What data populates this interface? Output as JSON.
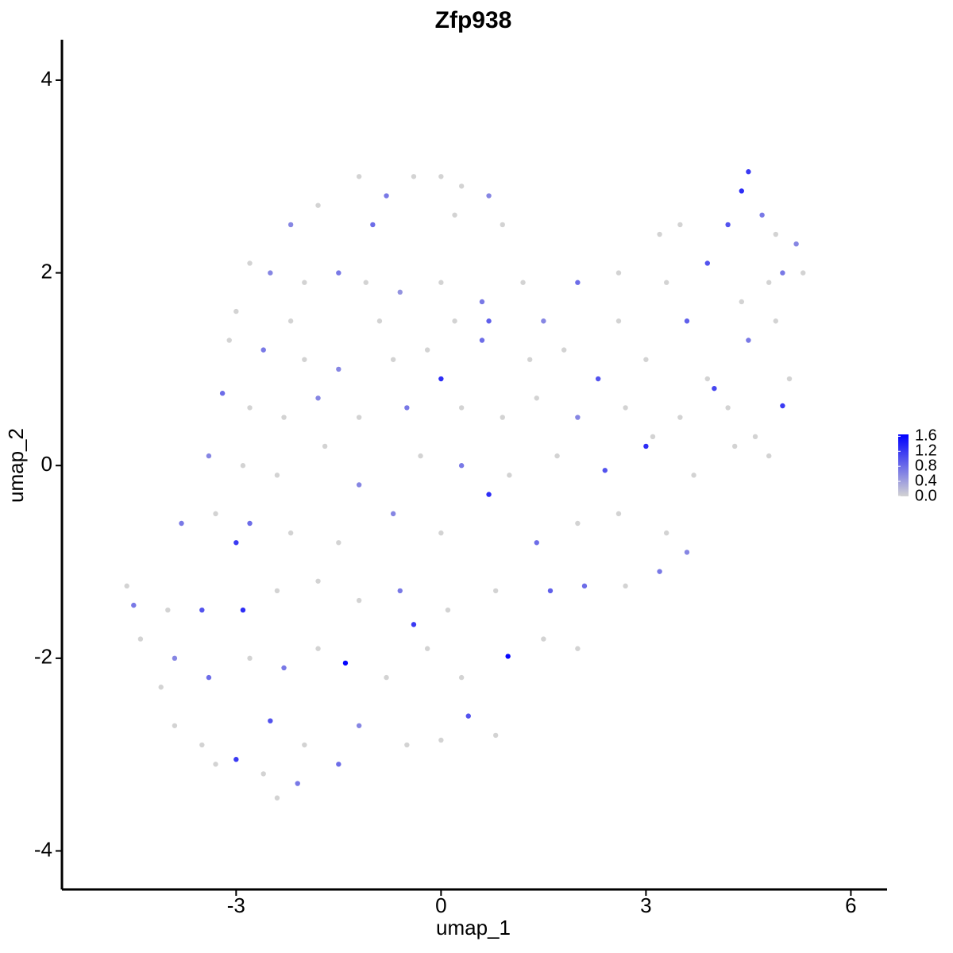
{
  "chart_data": {
    "type": "scatter",
    "title": "Zfp938",
    "x_label": "umap_1",
    "y_label": "umap_2",
    "xlim": [
      -5.55,
      6.53
    ],
    "ylim": [
      -4.4,
      4.42
    ],
    "xticks": [
      -3,
      0,
      3,
      6
    ],
    "yticks": [
      -4,
      -2,
      0,
      2,
      4
    ],
    "color_scale": {
      "low_color": "#d3d3d3",
      "high_color": "#0000ff",
      "lim": [
        0,
        1.65
      ],
      "ticks": [
        {
          "value": 0,
          "label": "0.0"
        },
        {
          "value": 0.4,
          "label": "0.4"
        },
        {
          "value": 0.8,
          "label": "0.8"
        },
        {
          "value": 1.2,
          "label": "1.2"
        },
        {
          "value": 1.6,
          "label": "1.6"
        }
      ]
    },
    "points": [
      {
        "x": -1.2,
        "y": 3.0,
        "value": 0
      },
      {
        "x": -0.8,
        "y": 2.8,
        "value": 0.7
      },
      {
        "x": -0.4,
        "y": 3.0,
        "value": 0
      },
      {
        "x": 0,
        "y": 3.0,
        "value": 0
      },
      {
        "x": 0.3,
        "y": 2.9,
        "value": 0
      },
      {
        "x": 0.7,
        "y": 2.8,
        "value": 0.6
      },
      {
        "x": -1.8,
        "y": 2.7,
        "value": 0
      },
      {
        "x": -2.2,
        "y": 2.5,
        "value": 0.6
      },
      {
        "x": -1.0,
        "y": 2.5,
        "value": 0.8
      },
      {
        "x": 0.2,
        "y": 2.6,
        "value": 0
      },
      {
        "x": 0.9,
        "y": 2.5,
        "value": 0
      },
      {
        "x": 4.5,
        "y": 3.05,
        "value": 1.2
      },
      {
        "x": 4.4,
        "y": 2.85,
        "value": 1.3
      },
      {
        "x": 4.7,
        "y": 2.6,
        "value": 0.7
      },
      {
        "x": 4.9,
        "y": 2.4,
        "value": 0
      },
      {
        "x": 5.2,
        "y": 2.3,
        "value": 0.6
      },
      {
        "x": 3.5,
        "y": 2.5,
        "value": 0
      },
      {
        "x": 3.2,
        "y": 2.4,
        "value": 0
      },
      {
        "x": 4.2,
        "y": 2.5,
        "value": 1.0
      },
      {
        "x": 3.9,
        "y": 2.1,
        "value": 1.0
      },
      {
        "x": 5.0,
        "y": 2.0,
        "value": 0.7
      },
      {
        "x": 4.8,
        "y": 1.9,
        "value": 0
      },
      {
        "x": -2.8,
        "y": 2.1,
        "value": 0
      },
      {
        "x": -2.5,
        "y": 2.0,
        "value": 0.6
      },
      {
        "x": -2.0,
        "y": 1.9,
        "value": 0
      },
      {
        "x": -1.5,
        "y": 2.0,
        "value": 0.7
      },
      {
        "x": -1.1,
        "y": 1.9,
        "value": 0
      },
      {
        "x": -0.6,
        "y": 1.8,
        "value": 0.5
      },
      {
        "x": 0,
        "y": 1.9,
        "value": 0
      },
      {
        "x": 0.6,
        "y": 1.7,
        "value": 0.7
      },
      {
        "x": 1.2,
        "y": 1.9,
        "value": 0
      },
      {
        "x": 2.0,
        "y": 1.9,
        "value": 0.8
      },
      {
        "x": 2.6,
        "y": 2.0,
        "value": 0
      },
      {
        "x": 3.3,
        "y": 1.9,
        "value": 0
      },
      {
        "x": 4.4,
        "y": 1.7,
        "value": 0
      },
      {
        "x": 5.3,
        "y": 2.0,
        "value": 0
      },
      {
        "x": -3.0,
        "y": 1.6,
        "value": 0
      },
      {
        "x": -2.2,
        "y": 1.5,
        "value": 0
      },
      {
        "x": -0.9,
        "y": 1.5,
        "value": 0
      },
      {
        "x": 0.2,
        "y": 1.5,
        "value": 0
      },
      {
        "x": 0.7,
        "y": 1.5,
        "value": 0.9
      },
      {
        "x": 1.5,
        "y": 1.5,
        "value": 0.6
      },
      {
        "x": 2.6,
        "y": 1.5,
        "value": 0
      },
      {
        "x": 3.6,
        "y": 1.5,
        "value": 0.9
      },
      {
        "x": 4.9,
        "y": 1.5,
        "value": 0
      },
      {
        "x": -3.1,
        "y": 1.3,
        "value": 0
      },
      {
        "x": -2.6,
        "y": 1.2,
        "value": 0.7
      },
      {
        "x": -2.0,
        "y": 1.1,
        "value": 0
      },
      {
        "x": -1.5,
        "y": 1.0,
        "value": 0.6
      },
      {
        "x": -0.7,
        "y": 1.1,
        "value": 0
      },
      {
        "x": -0.2,
        "y": 1.2,
        "value": 0
      },
      {
        "x": 0,
        "y": 0.9,
        "value": 1.3
      },
      {
        "x": 0.6,
        "y": 1.3,
        "value": 0.8
      },
      {
        "x": 1.3,
        "y": 1.1,
        "value": 0
      },
      {
        "x": 1.8,
        "y": 1.2,
        "value": 0
      },
      {
        "x": 2.3,
        "y": 0.9,
        "value": 1.0
      },
      {
        "x": 3.0,
        "y": 1.1,
        "value": 0
      },
      {
        "x": 3.9,
        "y": 0.9,
        "value": 0
      },
      {
        "x": 4.5,
        "y": 1.3,
        "value": 0.7
      },
      {
        "x": 5.1,
        "y": 0.9,
        "value": 0
      },
      {
        "x": 4.0,
        "y": 0.8,
        "value": 1.1
      },
      {
        "x": -3.2,
        "y": 0.75,
        "value": 0.8
      },
      {
        "x": -2.8,
        "y": 0.6,
        "value": 0
      },
      {
        "x": -2.3,
        "y": 0.5,
        "value": 0
      },
      {
        "x": -1.8,
        "y": 0.7,
        "value": 0.6
      },
      {
        "x": -1.2,
        "y": 0.5,
        "value": 0
      },
      {
        "x": -0.5,
        "y": 0.6,
        "value": 0.7
      },
      {
        "x": 0.3,
        "y": 0.6,
        "value": 0
      },
      {
        "x": 0.9,
        "y": 0.5,
        "value": 0
      },
      {
        "x": 1.4,
        "y": 0.7,
        "value": 0
      },
      {
        "x": 2.0,
        "y": 0.5,
        "value": 0.6
      },
      {
        "x": 2.7,
        "y": 0.6,
        "value": 0
      },
      {
        "x": 3.5,
        "y": 0.5,
        "value": 0
      },
      {
        "x": 4.2,
        "y": 0.6,
        "value": 0
      },
      {
        "x": 5.0,
        "y": 0.62,
        "value": 1.2
      },
      {
        "x": 4.6,
        "y": 0.3,
        "value": 0
      },
      {
        "x": 3.1,
        "y": 0.3,
        "value": 0
      },
      {
        "x": -3.4,
        "y": 0.1,
        "value": 0.6
      },
      {
        "x": -2.9,
        "y": 0,
        "value": 0
      },
      {
        "x": -2.4,
        "y": -0.1,
        "value": 0
      },
      {
        "x": -1.7,
        "y": 0.2,
        "value": 0
      },
      {
        "x": -1.2,
        "y": -0.2,
        "value": 0.6
      },
      {
        "x": -0.3,
        "y": 0.1,
        "value": 0
      },
      {
        "x": 0.3,
        "y": 0,
        "value": 0.7
      },
      {
        "x": 1.0,
        "y": -0.1,
        "value": 0
      },
      {
        "x": 1.7,
        "y": 0.1,
        "value": 0
      },
      {
        "x": 2.4,
        "y": -0.05,
        "value": 1.0
      },
      {
        "x": 3.0,
        "y": 0.2,
        "value": 1.3
      },
      {
        "x": 3.7,
        "y": -0.1,
        "value": 0
      },
      {
        "x": 4.3,
        "y": 0.2,
        "value": 0
      },
      {
        "x": 4.8,
        "y": 0.1,
        "value": 0
      },
      {
        "x": -3.8,
        "y": -0.6,
        "value": 0.7
      },
      {
        "x": -3.3,
        "y": -0.5,
        "value": 0
      },
      {
        "x": -2.8,
        "y": -0.6,
        "value": 0.8
      },
      {
        "x": -2.2,
        "y": -0.7,
        "value": 0
      },
      {
        "x": -1.5,
        "y": -0.8,
        "value": 0
      },
      {
        "x": -0.7,
        "y": -0.5,
        "value": 0.6
      },
      {
        "x": 0,
        "y": -0.7,
        "value": 0
      },
      {
        "x": 0.7,
        "y": -0.3,
        "value": 1.3
      },
      {
        "x": 1.4,
        "y": -0.8,
        "value": 0.8
      },
      {
        "x": 2.0,
        "y": -0.6,
        "value": 0
      },
      {
        "x": 2.6,
        "y": -0.5,
        "value": 0
      },
      {
        "x": 3.3,
        "y": -0.7,
        "value": 0
      },
      {
        "x": 3.6,
        "y": -0.9,
        "value": 0.6
      },
      {
        "x": -3.0,
        "y": -0.8,
        "value": 1.2
      },
      {
        "x": -4.6,
        "y": -1.25,
        "value": 0
      },
      {
        "x": -4.5,
        "y": -1.45,
        "value": 0.7
      },
      {
        "x": -4.0,
        "y": -1.5,
        "value": 0
      },
      {
        "x": -3.5,
        "y": -1.5,
        "value": 1.0
      },
      {
        "x": -2.9,
        "y": -1.5,
        "value": 1.3
      },
      {
        "x": -2.4,
        "y": -1.3,
        "value": 0
      },
      {
        "x": -1.8,
        "y": -1.2,
        "value": 0
      },
      {
        "x": -1.2,
        "y": -1.4,
        "value": 0
      },
      {
        "x": -0.6,
        "y": -1.3,
        "value": 0.7
      },
      {
        "x": 0.1,
        "y": -1.5,
        "value": 0
      },
      {
        "x": 0.8,
        "y": -1.3,
        "value": 0
      },
      {
        "x": 1.6,
        "y": -1.3,
        "value": 0.9
      },
      {
        "x": 2.1,
        "y": -1.25,
        "value": 0.8
      },
      {
        "x": 2.7,
        "y": -1.25,
        "value": 0
      },
      {
        "x": 3.2,
        "y": -1.1,
        "value": 0.7
      },
      {
        "x": -0.4,
        "y": -1.65,
        "value": 1.2
      },
      {
        "x": -4.4,
        "y": -1.8,
        "value": 0
      },
      {
        "x": -3.9,
        "y": -2.0,
        "value": 0.6
      },
      {
        "x": -3.4,
        "y": -2.2,
        "value": 0.8
      },
      {
        "x": -2.8,
        "y": -2.0,
        "value": 0
      },
      {
        "x": -2.3,
        "y": -2.1,
        "value": 0.7
      },
      {
        "x": -1.8,
        "y": -1.9,
        "value": 0
      },
      {
        "x": -1.4,
        "y": -2.05,
        "value": 1.6
      },
      {
        "x": -0.8,
        "y": -2.2,
        "value": 0
      },
      {
        "x": -0.2,
        "y": -1.9,
        "value": 0
      },
      {
        "x": 0.3,
        "y": -2.2,
        "value": 0
      },
      {
        "x": 0.98,
        "y": -1.98,
        "value": 1.6
      },
      {
        "x": 1.5,
        "y": -1.8,
        "value": 0
      },
      {
        "x": 2.0,
        "y": -1.9,
        "value": 0
      },
      {
        "x": -4.1,
        "y": -2.3,
        "value": 0
      },
      {
        "x": -3.9,
        "y": -2.7,
        "value": 0
      },
      {
        "x": -3.5,
        "y": -2.9,
        "value": 0
      },
      {
        "x": -3.0,
        "y": -3.05,
        "value": 1.2
      },
      {
        "x": -2.5,
        "y": -2.65,
        "value": 1.0
      },
      {
        "x": -2.0,
        "y": -2.9,
        "value": 0
      },
      {
        "x": -1.5,
        "y": -3.1,
        "value": 0.8
      },
      {
        "x": -2.4,
        "y": -3.45,
        "value": 0
      },
      {
        "x": -2.1,
        "y": -3.3,
        "value": 0.7
      },
      {
        "x": -1.2,
        "y": -2.7,
        "value": 0.6
      },
      {
        "x": -0.5,
        "y": -2.9,
        "value": 0
      },
      {
        "x": 0,
        "y": -2.85,
        "value": 0
      },
      {
        "x": 0.4,
        "y": -2.6,
        "value": 1.0
      },
      {
        "x": 0.8,
        "y": -2.8,
        "value": 0
      },
      {
        "x": -3.3,
        "y": -3.1,
        "value": 0
      },
      {
        "x": -2.6,
        "y": -3.2,
        "value": 0
      }
    ]
  }
}
